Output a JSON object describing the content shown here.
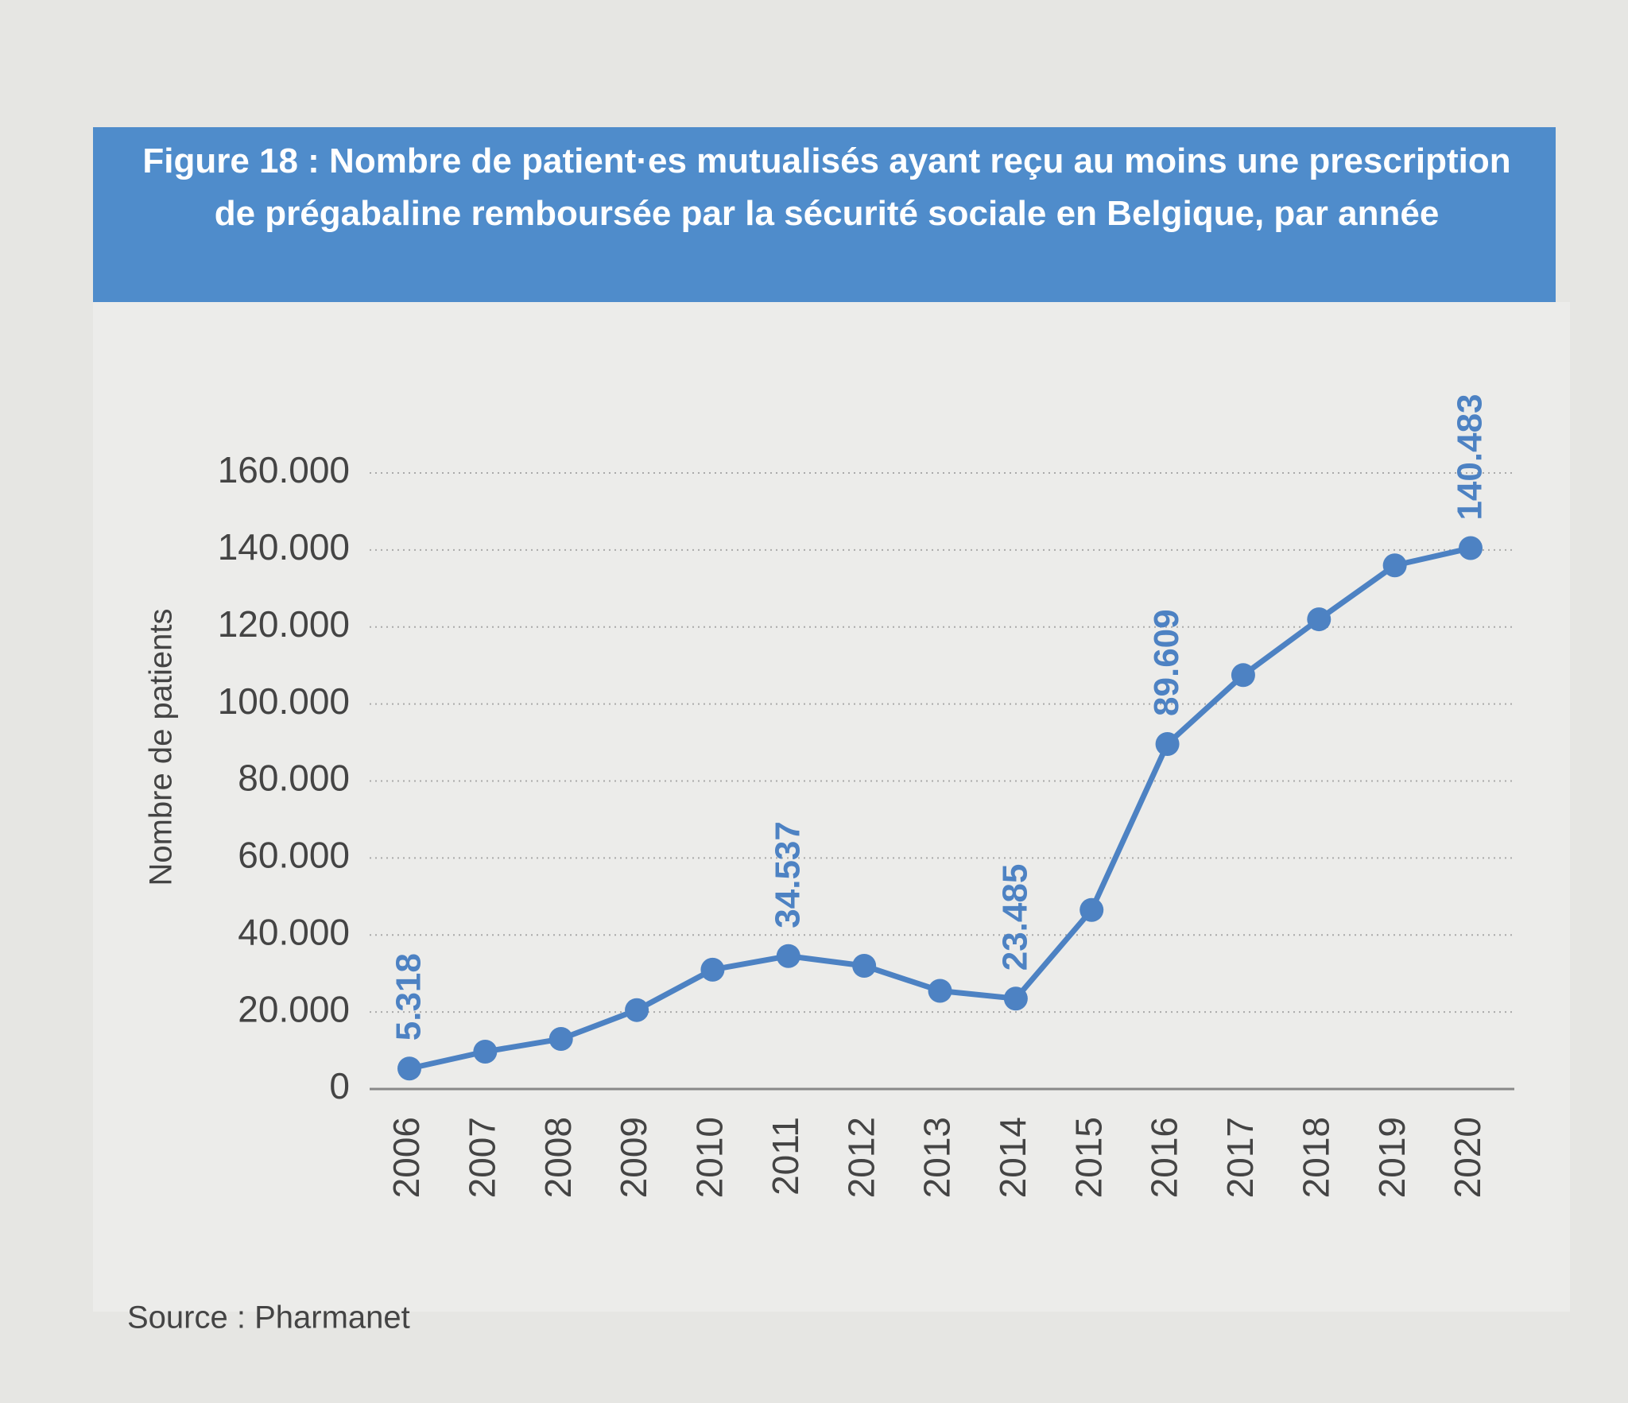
{
  "chart_data": {
    "type": "line",
    "title": "Figure 18 : Nombre de patient·es mutualisés ayant reçu au moins une prescription de prégabaline remboursée par la sécurité sociale en Belgique, par année",
    "y_label": "Nombre de patients",
    "source": "Source : Pharmanet",
    "categories": [
      "2006",
      "2007",
      "2008",
      "2009",
      "2010",
      "2011",
      "2012",
      "2013",
      "2014",
      "2015",
      "2016",
      "2017",
      "2018",
      "2019",
      "2020"
    ],
    "values": [
      5318,
      9700,
      13000,
      20500,
      31000,
      34537,
      32000,
      25500,
      23485,
      46500,
      89609,
      107500,
      122000,
      136000,
      140483
    ],
    "value_labels": [
      "5.318",
      null,
      null,
      null,
      null,
      "34.537",
      null,
      null,
      "23.485",
      null,
      "89.609",
      null,
      null,
      null,
      "140.483"
    ],
    "color": "#4d82c3",
    "ylim": [
      0,
      160000
    ],
    "yticks": [
      0,
      {
        "value": 20000,
        "label": "20.000"
      },
      {
        "value": 40000,
        "label": "40.000"
      },
      {
        "value": 60000,
        "label": "60.000"
      },
      {
        "value": 80000,
        "label": "80.000"
      },
      {
        "value": 100000,
        "label": "100.000"
      },
      {
        "value": 120000,
        "label": "120.000"
      },
      {
        "value": 140000,
        "label": "140.000"
      },
      {
        "value": 160000,
        "label": "160.000"
      }
    ],
    "grid": true
  }
}
